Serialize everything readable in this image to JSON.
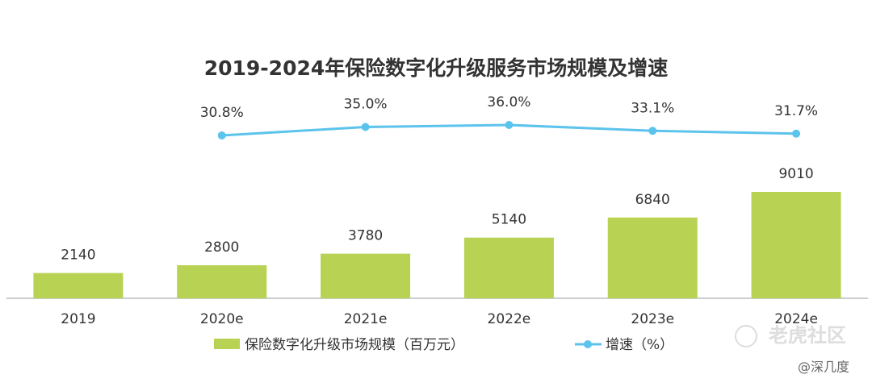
{
  "chart_data": {
    "type": "bar",
    "title": "2019-2024年保险数字化升级服务市场规模及增速",
    "categories": [
      "2019",
      "2020e",
      "2021e",
      "2022e",
      "2023e",
      "2024e"
    ],
    "series": [
      {
        "name": "保险数字化升级市场规模（百万元）",
        "type": "bar",
        "color": "#b8d253",
        "values": [
          2140,
          2800,
          3780,
          5140,
          6840,
          9010
        ]
      },
      {
        "name": "增速（%）",
        "type": "line",
        "color": "#5cc3ec",
        "values": [
          null,
          30.8,
          35.0,
          36.0,
          33.1,
          31.7
        ],
        "value_labels": [
          null,
          "30.8%",
          "35.0%",
          "36.0%",
          "33.1%",
          "31.7%"
        ]
      }
    ],
    "grid": false
  },
  "watermark": {
    "logo": "老虎社区",
    "author": "@深几度"
  }
}
